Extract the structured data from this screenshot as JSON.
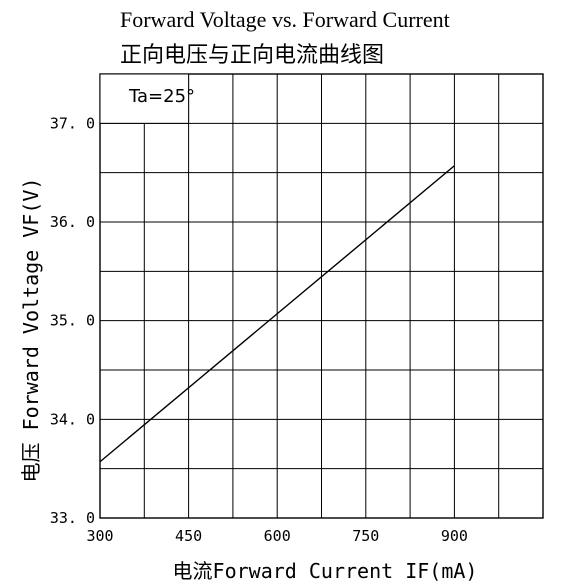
{
  "chart_data": {
    "type": "line",
    "title": "Forward Voltage vs. Forward Current",
    "subtitle": "正向电压与正向电流曲线图",
    "xlabel": "电流Forward Current IF(mA)",
    "ylabel": "电压 Forward Voltage VF(V)",
    "xlim": [
      300,
      1050
    ],
    "ylim": [
      33.0,
      37.5
    ],
    "x_ticks": [
      300,
      450,
      600,
      750,
      900
    ],
    "x_tick_labels": [
      "300",
      "450",
      "600",
      "750",
      "900"
    ],
    "y_ticks": [
      33.0,
      34.0,
      35.0,
      36.0,
      37.0
    ],
    "y_tick_labels": [
      "33. 0",
      "34. 0",
      "35. 0",
      "36. 0",
      "37. 0"
    ],
    "grid": true,
    "annotation": "Ta=25°",
    "series": [
      {
        "x": [
          300,
          900
        ],
        "y": [
          33.57,
          36.57
        ]
      }
    ]
  }
}
